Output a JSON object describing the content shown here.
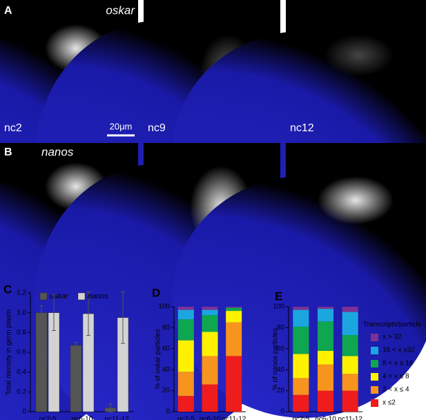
{
  "panels": {
    "row_a": {
      "letter": "A",
      "gene": "oskar",
      "stages": [
        "nc2",
        "nc9",
        "nc12"
      ],
      "scale_bar": "20μm"
    },
    "row_b": {
      "letter": "B",
      "gene": "nanos"
    }
  },
  "chart_data": [
    {
      "type": "bar",
      "panel": "C",
      "ylabel": "Total ntensity in germ plasm",
      "categories": [
        "nc2-5",
        "nc6-10",
        "nc11-12"
      ],
      "series": [
        {
          "name": "oskar",
          "color": "#555555",
          "values": [
            1.0,
            0.67,
            0.04
          ],
          "errors": [
            0.07,
            0.03,
            0.04
          ]
        },
        {
          "name": "nanos",
          "color": "#d3d3d3",
          "values": [
            1.0,
            0.99,
            0.95
          ],
          "errors": [
            0.18,
            0.22,
            0.26
          ]
        }
      ],
      "ylim": [
        0,
        1.2
      ],
      "yticks": [
        0,
        0.2,
        0.4,
        0.6,
        0.8,
        {
          "value": 1,
          "label": "1.0"
        },
        1.2
      ]
    },
    {
      "type": "stacked_bar",
      "panel": "D",
      "ylabel": "% of oskar particles",
      "categories": [
        "nc2-5",
        "nc6-10",
        "nc11-12"
      ],
      "series": [
        {
          "name": "x ≤2",
          "color": "#ee1c1c",
          "values": [
            15,
            26,
            53
          ]
        },
        {
          "name": "2 < x ≤ 4",
          "color": "#f7941d",
          "values": [
            23,
            27,
            32
          ]
        },
        {
          "name": "4 < x ≤ 8",
          "color": "#fff200",
          "values": [
            30,
            23,
            11
          ]
        },
        {
          "name": "8 < x ≤ 16",
          "color": "#0fa650",
          "values": [
            20,
            16,
            3
          ]
        },
        {
          "name": "16 < x ≤32",
          "color": "#1ca6e0",
          "values": [
            9,
            5,
            0
          ]
        },
        {
          "name": "x > 32",
          "color": "#7b3294",
          "values": [
            3,
            3,
            1
          ]
        }
      ],
      "ylim": [
        0,
        100
      ],
      "yticks": [
        0,
        20,
        40,
        60,
        80,
        100
      ]
    },
    {
      "type": "stacked_bar",
      "panel": "E",
      "ylabel": "% of nanos particles",
      "legend_title": "Transcripts/particle",
      "categories": [
        "nc2-5",
        "nc6-10",
        "nc11-12"
      ],
      "series": [
        {
          "name": "x ≤2",
          "color": "#ee1c1c",
          "values": [
            16,
            20,
            20
          ]
        },
        {
          "name": "2 < x ≤ 4",
          "color": "#f7941d",
          "values": [
            16,
            25,
            16
          ]
        },
        {
          "name": "4 < x ≤ 8",
          "color": "#fff200",
          "values": [
            23,
            13,
            17
          ]
        },
        {
          "name": "8 < x ≤ 16",
          "color": "#0fa650",
          "values": [
            26,
            28,
            20
          ]
        },
        {
          "name": "16 < x ≤32",
          "color": "#1ca6e0",
          "values": [
            16,
            12,
            22
          ]
        },
        {
          "name": "x > 32",
          "color": "#7b3294",
          "values": [
            3,
            2,
            5
          ]
        }
      ],
      "ylim": [
        0,
        100
      ],
      "yticks": [
        0,
        20,
        40,
        60,
        80,
        100
      ]
    }
  ]
}
